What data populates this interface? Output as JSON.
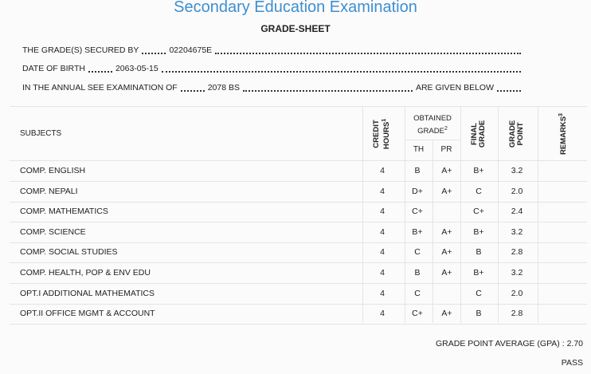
{
  "header": {
    "title": "Secondary Education Examination",
    "subtitle": "GRADE-SHEET"
  },
  "info": [
    {
      "label": "THE GRADE(S) SECURED BY",
      "value": "02204675E"
    },
    {
      "label": "DATE OF BIRTH",
      "value": "2063-05-15"
    },
    {
      "label": "IN THE ANNUAL SEE EXAMINATION OF",
      "value": "2078 BS",
      "tail": "ARE GIVEN BELOW"
    }
  ],
  "table": {
    "headers": {
      "subjects": "SUBJECTS",
      "credit": "CREDIT HOURS",
      "credit_note": "1",
      "obtained": "OBTAINED GRADE",
      "obtained_note": "2",
      "th": "TH",
      "pr": "PR",
      "final": "FINAL GRADE",
      "point": "GRADE POINT",
      "remarks": "REMARKS",
      "remarks_note": "3"
    },
    "rows": [
      [
        "COMP. ENGLISH",
        "4",
        "B",
        "A+",
        "B+",
        "3.2"
      ],
      [
        "COMP. NEPALI",
        "4",
        "D+",
        "A+",
        "C",
        "2.0"
      ],
      [
        "COMP. MATHEMATICS",
        "4",
        "C+",
        null,
        "C+",
        "2.4"
      ],
      [
        "COMP. SCIENCE",
        "4",
        "B+",
        "A+",
        "B+",
        "3.2"
      ],
      [
        "COMP. SOCIAL STUDIES",
        "4",
        "C",
        "A+",
        "B",
        "2.8"
      ],
      [
        "COMP. HEALTH, POP & ENV EDU",
        "4",
        "B",
        "A+",
        "B+",
        "3.2"
      ],
      [
        "OPT.I ADDITIONAL MATHEMATICS",
        "4",
        "C",
        null,
        "C",
        "2.0"
      ],
      [
        "OPT.II OFFICE MGMT & ACCOUNT",
        "4",
        "C+",
        "A+",
        "B",
        "2.8"
      ]
    ]
  },
  "footer": {
    "gpa_label": "GRADE POINT AVERAGE (GPA) :",
    "gpa": "2.70",
    "result": "PASS"
  }
}
